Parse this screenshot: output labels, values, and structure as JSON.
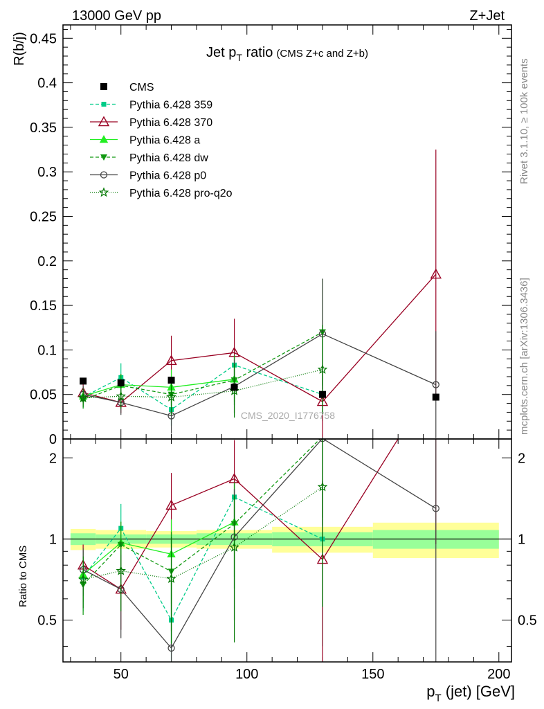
{
  "header": {
    "energy_label": "13000 GeV pp",
    "process_label": "Z+Jet"
  },
  "side_labels": {
    "rivet": "Rivet 3.1.10, ≥ 100k events",
    "mcplots": "mcplots.cern.ch [arXiv:1306.3436]"
  },
  "watermark": "CMS_2020_I1776758",
  "title": {
    "main": "Jet p",
    "main_sub": "T",
    "main_tail": " ratio",
    "small": "(CMS  Z+c and Z+b)"
  },
  "axes": {
    "top_ylabel": "R(b/j)",
    "bottom_ylabel": "Ratio to CMS",
    "xlabel_main": "p",
    "xlabel_sub": "T",
    "xlabel_tail": " (jet) [GeV]"
  },
  "chart_data": {
    "type": "line",
    "x_range": [
      27,
      205
    ],
    "top_ylim": [
      0,
      0.465
    ],
    "ratio_ylim": [
      0.35,
      2.35
    ],
    "top_yticks": [
      0,
      0.05,
      0.1,
      0.15,
      0.2,
      0.25,
      0.3,
      0.35,
      0.4,
      0.45
    ],
    "top_ytick_labels": [
      "0",
      "0.05",
      "0.1",
      "0.15",
      "0.2",
      "0.25",
      "0.3",
      "0.35",
      "0.4",
      "0.45"
    ],
    "ratio_yticks": [
      0.5,
      1,
      2
    ],
    "ratio_ytick_labels": [
      "0.5",
      "1",
      "2"
    ],
    "xticks": [
      50,
      100,
      150,
      200
    ],
    "xtick_labels": [
      "50",
      "100",
      "150",
      "200"
    ],
    "data": {
      "name": "CMS",
      "x": [
        35,
        50,
        70,
        95,
        130,
        175
      ],
      "y": [
        0.065,
        0.063,
        0.066,
        0.058,
        0.05,
        0.047
      ],
      "xbins": [
        [
          30,
          40
        ],
        [
          40,
          60
        ],
        [
          60,
          80
        ],
        [
          80,
          110
        ],
        [
          110,
          150
        ],
        [
          150,
          200
        ]
      ],
      "ratio_inner": [
        0.05,
        0.04,
        0.04,
        0.05,
        0.06,
        0.08
      ],
      "ratio_outer": [
        0.09,
        0.08,
        0.07,
        0.08,
        0.11,
        0.15
      ]
    },
    "series": [
      {
        "name": "Pythia 6.428 359",
        "color": "#00cc88",
        "dash": "5,3",
        "marker": "square",
        "y": [
          0.047,
          0.069,
          0.033,
          0.083,
          0.05
        ],
        "err": [
          0.012,
          0.016,
          0.018,
          0.018,
          0.03
        ]
      },
      {
        "name": "Pythia 6.428 370",
        "color": "#990022",
        "dash": "",
        "marker": "triangle-open",
        "y": [
          0.052,
          0.041,
          0.088,
          0.097,
          0.042,
          0.185
        ],
        "err": [
          0.01,
          0.012,
          0.028,
          0.038,
          0.04,
          0.14
        ]
      },
      {
        "name": "Pythia 6.428 a",
        "color": "#22ee22",
        "dash": "",
        "marker": "triangle",
        "y": [
          0.048,
          0.061,
          0.058,
          0.067
        ],
        "err": [
          0.01,
          0.012,
          0.02,
          0.025
        ]
      },
      {
        "name": "Pythia 6.428 dw",
        "color": "#119911",
        "dash": "5,3",
        "marker": "triangle-down",
        "y": [
          0.044,
          0.06,
          0.05,
          0.066,
          0.12
        ],
        "err": [
          0.01,
          0.013,
          0.02,
          0.028,
          0.06
        ]
      },
      {
        "name": "Pythia 6.428 p0",
        "color": "#444444",
        "dash": "",
        "marker": "circle-open",
        "y": [
          0.05,
          0.041,
          0.026,
          0.059,
          0.118,
          0.061
        ],
        "err": [
          0.01,
          0.014,
          0.02,
          0.03,
          0.062,
          0.06
        ]
      },
      {
        "name": "Pythia 6.428 pro-q2o",
        "color": "#007700",
        "dash": "1,2",
        "marker": "star",
        "y": [
          0.046,
          0.048,
          0.047,
          0.054,
          0.078
        ],
        "err": [
          0.01,
          0.014,
          0.02,
          0.03,
          0.05
        ]
      }
    ]
  }
}
